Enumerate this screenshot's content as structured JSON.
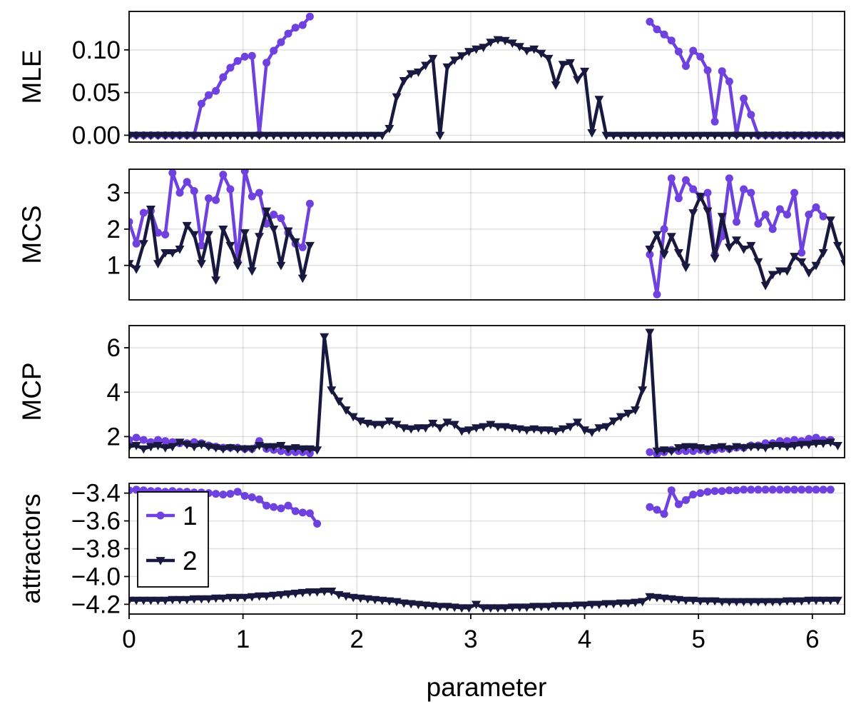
{
  "chart_data": {
    "type": "line",
    "xlabel": "parameter",
    "xlim": [
      0,
      6.283
    ],
    "xticks": [
      0,
      1,
      2,
      3,
      4,
      5,
      6
    ],
    "grid": true,
    "legend": {
      "placement": "bottom-left of last panel",
      "entries": [
        {
          "label": "1",
          "marker": "circle",
          "color": "#6f42e0"
        },
        {
          "label": "2",
          "marker": "triangle-down",
          "color": "#19193f"
        }
      ]
    },
    "x_step": 0.0635,
    "panels": [
      {
        "ylabel": "MLE",
        "ylim": [
          -0.008,
          0.145
        ],
        "yticks": [
          0,
          0.05,
          0.1
        ],
        "ytick_labels": [
          "0.00",
          "0.05",
          "0.10"
        ],
        "series": [
          {
            "name": "1",
            "segments": [
              {
                "x_start": 0,
                "values": [
                  0,
                  0,
                  0,
                  0,
                  0,
                  0,
                  0,
                  0,
                  0,
                  0,
                  0.037,
                  0.047,
                  0.052,
                  0.068,
                  0.079,
                  0.087,
                  0.092,
                  0.093,
                  0.001,
                  0.085,
                  0.099,
                  0.109,
                  0.119,
                  0.126,
                  0.129,
                  0.139
                ]
              },
              {
                "x_start": 4.572,
                "values": [
                  0.133,
                  0.124,
                  0.118,
                  0.111,
                  0.098,
                  0.081,
                  0.099,
                  0.092,
                  0.076,
                  0.016,
                  0.075,
                  0.063,
                  0.001,
                  0.043,
                  0.024,
                  0,
                  0,
                  0,
                  0,
                  0,
                  0,
                  0,
                  0,
                  0,
                  0,
                  0,
                  0,
                  0
                ]
              }
            ]
          },
          {
            "name": "2",
            "segments": [
              {
                "x_start": 0,
                "values": [
                  0,
                  0,
                  0,
                  0,
                  0,
                  0,
                  0,
                  0,
                  0,
                  0,
                  0,
                  0,
                  0,
                  0,
                  0,
                  0,
                  0,
                  0,
                  0,
                  0,
                  0,
                  0,
                  0,
                  0,
                  0,
                  0,
                  0,
                  0,
                  0,
                  0,
                  0,
                  0,
                  0,
                  0,
                  0,
                  0,
                  0.008,
                  0.045,
                  0.064,
                  0.072,
                  0.074,
                  0.082,
                  0.09,
                  0,
                  0.08,
                  0.088,
                  0.093,
                  0.098,
                  0.101,
                  0.103,
                  0.109,
                  0.112,
                  0.111,
                  0.108,
                  0.104,
                  0.099,
                  0.101,
                  0.096,
                  0.09,
                  0.059,
                  0.083,
                  0.085,
                  0.065,
                  0.075,
                  0.003,
                  0.042,
                  0,
                  0,
                  0,
                  0,
                  0,
                  0,
                  0,
                  0,
                  0,
                  0,
                  0,
                  0,
                  0,
                  0,
                  0,
                  0,
                  0,
                  0,
                  0,
                  0,
                  0,
                  0,
                  0,
                  0,
                  0,
                  0,
                  0,
                  0,
                  0,
                  0,
                  0,
                  0,
                  0,
                  0
                ]
              }
            ]
          }
        ]
      },
      {
        "ylabel": "MCS",
        "ylim": [
          0.05,
          3.65
        ],
        "yticks": [
          1,
          2,
          3
        ],
        "ytick_labels": [
          "1",
          "2",
          "3"
        ],
        "series": [
          {
            "name": "1",
            "segments": [
              {
                "x_start": 0,
                "values": [
                  2.2,
                  1.6,
                  2.45,
                  2.5,
                  1.9,
                  1.85,
                  3.55,
                  3.0,
                  3.3,
                  3.05,
                  1.55,
                  2.85,
                  2.8,
                  3.5,
                  3.1,
                  1.1,
                  3.6,
                  2.9,
                  3.0,
                  2.15,
                  2.4,
                  2.3,
                  1.9,
                  1.6,
                  1.5,
                  2.7
                ]
              },
              {
                "x_start": 4.572,
                "values": [
                  1.3,
                  0.2,
                  2.0,
                  3.4,
                  2.85,
                  3.35,
                  3.1,
                  2.9,
                  3.0,
                  1.3,
                  1.8,
                  3.4,
                  2.2,
                  3.1,
                  3.0,
                  2.15,
                  2.4,
                  2.0,
                  2.55,
                  2.4,
                  3.0,
                  1.35,
                  2.4,
                  2.6,
                  2.35
                ]
              }
            ]
          },
          {
            "name": "2",
            "segments": [
              {
                "x_start": 0,
                "values": [
                  1.05,
                  0.9,
                  1.6,
                  2.55,
                  1.05,
                  1.35,
                  1.35,
                  1.45,
                  2.1,
                  1.85,
                  1.05,
                  1.85,
                  0.6,
                  2.0,
                  1.55,
                  1.0,
                  1.9,
                  0.85,
                  1.8,
                  2.5,
                  2.0,
                  1.0,
                  1.95,
                  1.65,
                  0.65,
                  1.55
                ]
              },
              {
                "x_start": 4.572,
                "values": [
                  1.45,
                  1.85,
                  1.3,
                  1.8,
                  1.35,
                  0.95,
                  2.45,
                  2.9,
                  2.5,
                  1.2,
                  2.35,
                  1.5,
                  1.7,
                  1.45,
                  1.55,
                  1.1,
                  0.45,
                  0.75,
                  0.85,
                  0.85,
                  1.25,
                  1.1,
                  0.8,
                  1.0,
                  1.35,
                  2.25,
                  1.55,
                  1.05,
                  2.6,
                  1.05
                ]
              }
            ]
          }
        ]
      },
      {
        "ylabel": "MCP",
        "ylim": [
          1.05,
          7.0
        ],
        "yticks": [
          2,
          4,
          6
        ],
        "ytick_labels": [
          "2",
          "4",
          "6"
        ],
        "series": [
          {
            "name": "1",
            "segments": [
              {
                "x_start": 0,
                "values": [
                  1.85,
                  1.95,
                  1.85,
                  1.75,
                  1.85,
                  1.8,
                  1.75,
                  1.7,
                  1.7,
                  1.75,
                  1.7,
                  1.6,
                  1.55,
                  1.5,
                  1.5,
                  1.5,
                  1.45,
                  1.45,
                  1.8,
                  1.45,
                  1.4,
                  1.35,
                  1.3,
                  1.3,
                  1.3,
                  1.25
                ]
              },
              {
                "x_start": 4.572,
                "values": [
                  1.3,
                  1.2,
                  1.3,
                  1.4,
                  1.35,
                  1.35,
                  1.35,
                  1.4,
                  1.35,
                  1.4,
                  1.45,
                  1.45,
                  1.5,
                  1.5,
                  1.6,
                  1.6,
                  1.7,
                  1.7,
                  1.8,
                  1.8,
                  1.85,
                  1.8,
                  1.9,
                  1.95,
                  1.85,
                  1.85
                ]
              }
            ]
          },
          {
            "name": "2",
            "segments": [
              {
                "x_start": 0,
                "values": [
                  1.55,
                  1.6,
                  1.45,
                  1.55,
                  1.6,
                  1.5,
                  1.55,
                  1.75,
                  1.65,
                  1.55,
                  1.65,
                  1.55,
                  1.5,
                  1.45,
                  1.5,
                  1.45,
                  1.45,
                  1.45,
                  1.6,
                  1.55,
                  1.55,
                  1.6,
                  1.45,
                  1.5,
                  1.45,
                  1.45,
                  1.4,
                  6.5,
                  4.1,
                  3.6,
                  3.2,
                  2.9,
                  2.7,
                  2.6,
                  2.55,
                  2.55,
                  2.7,
                  2.55,
                  2.4,
                  2.35,
                  2.4,
                  2.4,
                  2.6,
                  2.4,
                  2.65,
                  2.55,
                  2.25,
                  2.3,
                  2.4,
                  2.45,
                  2.55,
                  2.45,
                  2.45,
                  2.4,
                  2.35,
                  2.3,
                  2.35,
                  2.3,
                  2.3,
                  2.25,
                  2.35,
                  2.45,
                  2.65,
                  2.3,
                  2.2,
                  2.4,
                  2.45,
                  2.7,
                  2.9,
                  3.05,
                  3.2,
                  4.1,
                  6.7,
                  1.35,
                  1.4,
                  1.35,
                  1.5,
                  1.55,
                  1.55,
                  1.5,
                  1.45,
                  1.5,
                  1.55,
                  1.45,
                  1.55,
                  1.5,
                  1.55,
                  1.55,
                  1.5,
                  1.6,
                  1.6,
                  1.55,
                  1.6,
                  1.65,
                  1.65,
                  1.7,
                  1.7,
                  1.75,
                  1.6
                ]
              }
            ]
          }
        ]
      },
      {
        "ylabel": "attractors",
        "ylim": [
          -4.27,
          -3.33
        ],
        "yticks": [
          -4.2,
          -4.0,
          -3.8,
          -3.6,
          -3.4
        ],
        "ytick_labels": [
          "−4.2",
          "−4.0",
          "−3.8",
          "−3.6",
          "−3.4"
        ],
        "series": [
          {
            "name": "1",
            "segments": [
              {
                "x_start": 0,
                "values": [
                  -3.38,
                  -3.375,
                  -3.38,
                  -3.385,
                  -3.385,
                  -3.39,
                  -3.385,
                  -3.39,
                  -3.39,
                  -3.395,
                  -3.395,
                  -3.4,
                  -3.405,
                  -3.41,
                  -3.405,
                  -3.39,
                  -3.42,
                  -3.43,
                  -3.445,
                  -3.49,
                  -3.5,
                  -3.51,
                  -3.49,
                  -3.53,
                  -3.54,
                  -3.545,
                  -3.62
                ]
              },
              {
                "x_start": 4.572,
                "values": [
                  -3.5,
                  -3.52,
                  -3.55,
                  -3.38,
                  -3.48,
                  -3.45,
                  -3.41,
                  -3.4,
                  -3.39,
                  -3.385,
                  -3.385,
                  -3.38,
                  -3.38,
                  -3.375,
                  -3.375,
                  -3.375,
                  -3.375,
                  -3.375,
                  -3.375,
                  -3.375,
                  -3.375,
                  -3.375,
                  -3.375,
                  -3.375,
                  -3.375,
                  -3.375
                ]
              }
            ]
          },
          {
            "name": "2",
            "segments": [
              {
                "x_start": 0,
                "values": [
                  -4.17,
                  -4.17,
                  -4.17,
                  -4.17,
                  -4.17,
                  -4.17,
                  -4.165,
                  -4.165,
                  -4.165,
                  -4.16,
                  -4.16,
                  -4.16,
                  -4.155,
                  -4.155,
                  -4.15,
                  -4.15,
                  -4.15,
                  -4.145,
                  -4.14,
                  -4.14,
                  -4.135,
                  -4.13,
                  -4.125,
                  -4.12,
                  -4.115,
                  -4.11,
                  -4.11,
                  -4.105,
                  -4.105,
                  -4.13,
                  -4.14,
                  -4.15,
                  -4.155,
                  -4.16,
                  -4.165,
                  -4.17,
                  -4.175,
                  -4.18,
                  -4.19,
                  -4.195,
                  -4.2,
                  -4.205,
                  -4.21,
                  -4.215,
                  -4.215,
                  -4.22,
                  -4.225,
                  -4.225,
                  -4.2,
                  -4.225,
                  -4.225,
                  -4.225,
                  -4.225,
                  -4.22,
                  -4.22,
                  -4.22,
                  -4.215,
                  -4.215,
                  -4.215,
                  -4.21,
                  -4.21,
                  -4.21,
                  -4.205,
                  -4.205,
                  -4.2,
                  -4.2,
                  -4.195,
                  -4.195,
                  -4.19,
                  -4.19,
                  -4.185,
                  -4.18,
                  -4.145,
                  -4.15,
                  -4.155,
                  -4.16,
                  -4.165,
                  -4.17,
                  -4.17,
                  -4.175,
                  -4.175,
                  -4.175,
                  -4.18,
                  -4.18,
                  -4.18,
                  -4.18,
                  -4.18,
                  -4.18,
                  -4.18,
                  -4.18,
                  -4.18,
                  -4.175,
                  -4.175,
                  -4.175,
                  -4.17,
                  -4.17,
                  -4.17,
                  -4.17,
                  -4.17
                ]
              }
            ]
          }
        ]
      }
    ]
  }
}
